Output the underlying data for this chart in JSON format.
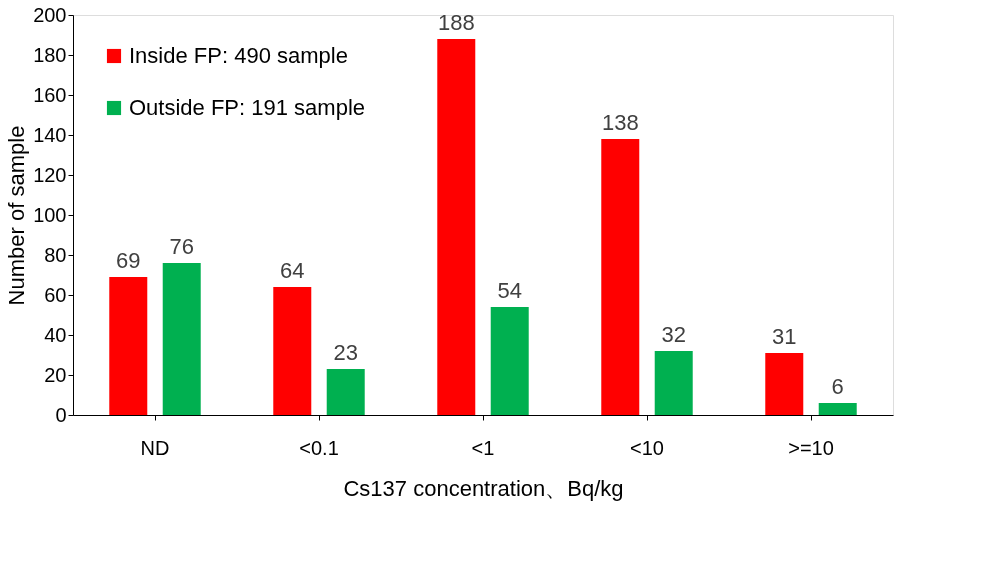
{
  "chart_data": {
    "type": "bar",
    "xlabel": "Cs137 concentration、Bq/kg",
    "ylabel": "Number of sample",
    "categories": [
      "ND",
      "<0.1",
      "<1",
      "<10",
      ">=10"
    ],
    "series": [
      {
        "name": "Inside FP: 490 sample",
        "color": "#ff0000",
        "values": [
          69,
          64,
          188,
          138,
          31
        ]
      },
      {
        "name": "Outside FP: 191 sample",
        "color": "#00b050",
        "values": [
          76,
          23,
          54,
          32,
          6
        ]
      }
    ],
    "ylim": [
      0,
      200
    ],
    "yticks": [
      0,
      20,
      40,
      60,
      80,
      100,
      120,
      140,
      160,
      180,
      200
    ],
    "data_labels": true,
    "legend": "top left"
  }
}
